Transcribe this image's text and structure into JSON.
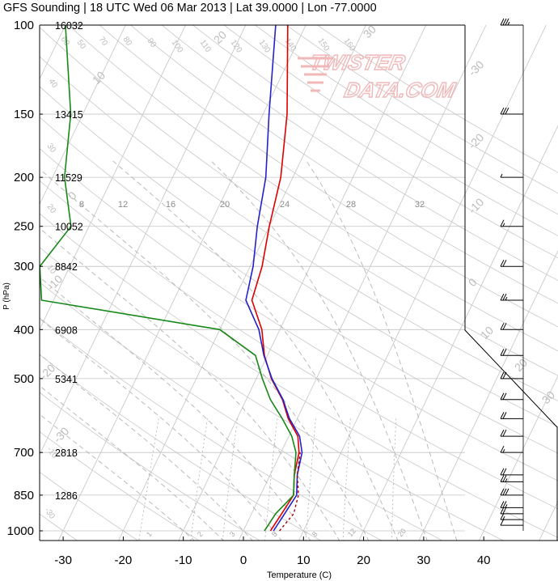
{
  "chart_data": {
    "type": "line",
    "title": "GFS Sounding | 18 UTC Wed 06 Mar 2013 | Lat 39.0000 | Lon -77.0000",
    "xlabel": "Temperature (C)",
    "ylabel": "P (hPa)",
    "y_scale": "log",
    "xlim": [
      -34,
      48
    ],
    "ylim": [
      1020,
      100
    ],
    "x_ticks": [
      "-30",
      "-20",
      "-10",
      "0",
      "10",
      "20",
      "30",
      "40"
    ],
    "pressure_levels": [
      {
        "p": 100,
        "label": "100",
        "height": "16032"
      },
      {
        "p": 150,
        "label": "150",
        "height": "13415"
      },
      {
        "p": 200,
        "label": "200",
        "height": "11529"
      },
      {
        "p": 250,
        "label": "250",
        "height": "10052"
      },
      {
        "p": 300,
        "label": "300",
        "height": "8842"
      },
      {
        "p": 400,
        "label": "400",
        "height": "6908"
      },
      {
        "p": 500,
        "label": "500",
        "height": "5341"
      },
      {
        "p": 700,
        "label": "700",
        "height": "2818"
      },
      {
        "p": 850,
        "label": "850",
        "height": "1286"
      },
      {
        "p": 1000,
        "label": "1000",
        "height": ""
      }
    ],
    "isotherm_labels": [
      "-30",
      "-20",
      "-10",
      "0",
      "10",
      "20",
      "30"
    ],
    "dry_adiabat_labels": [
      "40",
      "50",
      "60",
      "70",
      "80",
      "90",
      "100",
      "110",
      "120",
      "130",
      "140",
      "150",
      "160"
    ],
    "mixing_ratio_upper_labels": [
      "8",
      "12",
      "16",
      "20",
      "24",
      "28",
      "32"
    ],
    "mixing_ratio_lower_labels": [
      "1",
      "2",
      "3",
      "5",
      "8",
      "12",
      "20"
    ],
    "series": [
      {
        "name": "Temperature",
        "color": "#dd0000",
        "points": [
          [
            4.5,
            1000
          ],
          [
            5.0,
            925
          ],
          [
            5.5,
            850
          ],
          [
            4.0,
            775
          ],
          [
            3.0,
            700
          ],
          [
            1.5,
            650
          ],
          [
            -1.5,
            600
          ],
          [
            -4.0,
            550
          ],
          [
            -7.5,
            500
          ],
          [
            -10.5,
            450
          ],
          [
            -13.0,
            400
          ],
          [
            -17.0,
            350
          ],
          [
            -18.0,
            300
          ],
          [
            -20.0,
            250
          ],
          [
            -22.0,
            200
          ],
          [
            -26.0,
            150
          ],
          [
            -33.0,
            100
          ]
        ]
      },
      {
        "name": "Virtual temperature",
        "color": "#2222cc",
        "points": [
          [
            5.0,
            1000
          ],
          [
            5.5,
            925
          ],
          [
            6.0,
            850
          ],
          [
            4.5,
            775
          ],
          [
            3.5,
            700
          ],
          [
            1.8,
            650
          ],
          [
            -1.3,
            600
          ],
          [
            -3.9,
            550
          ],
          [
            -7.4,
            500
          ],
          [
            -10.6,
            450
          ],
          [
            -13.5,
            400
          ],
          [
            -18.0,
            350
          ],
          [
            -19.5,
            300
          ],
          [
            -22.0,
            250
          ],
          [
            -24.5,
            200
          ],
          [
            -29.0,
            150
          ],
          [
            -35.0,
            100
          ]
        ]
      },
      {
        "name": "Dewpoint",
        "color": "#188818",
        "points": [
          [
            3.5,
            1000
          ],
          [
            4.0,
            925
          ],
          [
            5.5,
            850
          ],
          [
            4.0,
            775
          ],
          [
            2.5,
            700
          ],
          [
            0.5,
            650
          ],
          [
            -2.5,
            600
          ],
          [
            -6.0,
            550
          ],
          [
            -9.0,
            500
          ],
          [
            -12.0,
            450
          ],
          [
            -20.0,
            400
          ],
          [
            -52.0,
            350
          ],
          [
            -55.0,
            300
          ],
          [
            -53.0,
            250
          ],
          [
            -58.0,
            200
          ],
          [
            -62.0,
            150
          ],
          [
            -70.0,
            100
          ]
        ]
      },
      {
        "name": "Parcel",
        "color": "#aa0000",
        "style": "dotted",
        "points": [
          [
            6.0,
            1000
          ],
          [
            7.0,
            925
          ],
          [
            6.3,
            850
          ],
          [
            4.5,
            775
          ],
          [
            3.2,
            700
          ]
        ]
      }
    ]
  },
  "winds": [
    {
      "p": 100,
      "kt": 35
    },
    {
      "p": 150,
      "kt": 30
    },
    {
      "p": 200,
      "kt": 5
    },
    {
      "p": 250,
      "kt": 15
    },
    {
      "p": 300,
      "kt": 20
    },
    {
      "p": 350,
      "kt": 25
    },
    {
      "p": 400,
      "kt": 20
    },
    {
      "p": 450,
      "kt": 20
    },
    {
      "p": 500,
      "kt": 20
    },
    {
      "p": 550,
      "kt": 20
    },
    {
      "p": 600,
      "kt": 20
    },
    {
      "p": 650,
      "kt": 20
    },
    {
      "p": 700,
      "kt": 15
    },
    {
      "p": 775,
      "kt": 20
    },
    {
      "p": 800,
      "kt": 25
    },
    {
      "p": 850,
      "kt": 30
    },
    {
      "p": 900,
      "kt": 25
    },
    {
      "p": 925,
      "kt": 20
    },
    {
      "p": 950,
      "kt": 15
    },
    {
      "p": 975,
      "kt": 10
    }
  ],
  "watermark": "TWISTERDATA.COM",
  "colors": {
    "grid": "#c4c4c4",
    "dry_adiabat": "#c8c8c8",
    "moist_adiabat": "#b4b4b4",
    "mixing": "#b0b0b0"
  }
}
